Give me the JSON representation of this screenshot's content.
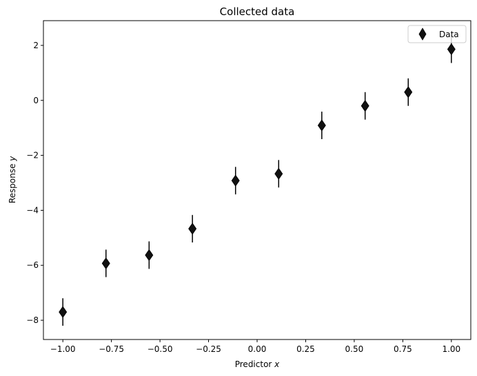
{
  "chart_data": {
    "type": "scatter",
    "title": "Collected data",
    "xlabel_text": "Predictor ",
    "xlabel_var": "x",
    "ylabel_text": "Response ",
    "ylabel_var": "y",
    "xlim": [
      -1.1,
      1.1
    ],
    "ylim": [
      -8.7,
      2.9
    ],
    "xticks": [
      -1.0,
      -0.75,
      -0.5,
      -0.25,
      0.0,
      0.25,
      0.5,
      0.75,
      1.0
    ],
    "xtick_labels": [
      "−1.00",
      "−0.75",
      "−0.50",
      "−0.25",
      "0.00",
      "0.25",
      "0.50",
      "0.75",
      "1.00"
    ],
    "yticks": [
      -8,
      -6,
      -4,
      -2,
      0,
      2
    ],
    "ytick_labels": [
      "−8",
      "−6",
      "−4",
      "−2",
      "0",
      "2"
    ],
    "grid": false,
    "legend_position": "upper right",
    "series": [
      {
        "name": "Data",
        "marker": "diamond",
        "color": "#111111",
        "x": [
          -1.0,
          -0.778,
          -0.556,
          -0.333,
          -0.111,
          0.111,
          0.333,
          0.556,
          0.778,
          1.0
        ],
        "y": [
          -7.7,
          -5.93,
          -5.63,
          -4.67,
          -2.92,
          -2.67,
          -0.91,
          -0.2,
          0.3,
          1.86
        ],
        "yerr": 0.5
      }
    ]
  }
}
